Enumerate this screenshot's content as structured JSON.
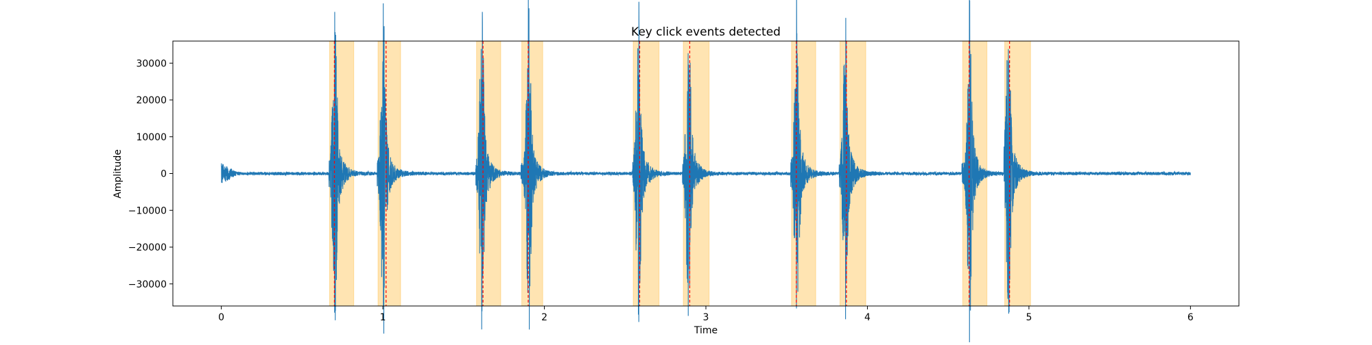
{
  "chart_data": {
    "type": "line",
    "title": "Key click events detected",
    "xlabel": "Time",
    "ylabel": "Amplitude",
    "xlim": [
      -0.3,
      6.3
    ],
    "ylim": [
      -36000,
      36000
    ],
    "x_ticks": [
      0,
      1,
      2,
      3,
      4,
      5,
      6
    ],
    "y_ticks": [
      -30000,
      -20000,
      -10000,
      0,
      10000,
      20000,
      30000
    ],
    "x_tick_labels": [
      "0",
      "1",
      "2",
      "3",
      "4",
      "5",
      "6"
    ],
    "y_tick_labels": [
      "−30000",
      "−20000",
      "−10000",
      "0",
      "10000",
      "20000",
      "30000"
    ],
    "signal_range": [
      0,
      6
    ],
    "grid": false,
    "legend": "none",
    "colors": {
      "signal": "#1f77b4",
      "event_band": "#ffa500",
      "event_band_edge": "#ffa500",
      "event_marker": "#ff0000",
      "axes": "#000000"
    },
    "event_bands": [
      {
        "start": 0.67,
        "end": 0.82
      },
      {
        "start": 0.97,
        "end": 1.11
      },
      {
        "start": 1.58,
        "end": 1.73
      },
      {
        "start": 1.86,
        "end": 1.99
      },
      {
        "start": 2.55,
        "end": 2.71
      },
      {
        "start": 2.86,
        "end": 3.02
      },
      {
        "start": 3.53,
        "end": 3.68
      },
      {
        "start": 3.83,
        "end": 3.99
      },
      {
        "start": 4.59,
        "end": 4.74
      },
      {
        "start": 4.85,
        "end": 5.01
      }
    ],
    "event_markers": [
      0.7,
      1.02,
      1.62,
      1.9,
      2.59,
      2.9,
      3.56,
      3.87,
      4.63,
      4.88
    ],
    "bursts": [
      {
        "onset": 0.665,
        "peak_time": 0.7,
        "peak": 33000
      },
      {
        "onset": 0.965,
        "peak_time": 1.0,
        "peak": 33000
      },
      {
        "onset": 1.575,
        "peak_time": 1.61,
        "peak": 32500
      },
      {
        "onset": 1.855,
        "peak_time": 1.9,
        "peak": 32500
      },
      {
        "onset": 2.545,
        "peak_time": 2.58,
        "peak": 33000
      },
      {
        "onset": 2.855,
        "peak_time": 2.89,
        "peak": 33000
      },
      {
        "onset": 3.525,
        "peak_time": 3.56,
        "peak": 33000
      },
      {
        "onset": 3.825,
        "peak_time": 3.86,
        "peak": 32500
      },
      {
        "onset": 4.585,
        "peak_time": 4.63,
        "peak": 33000
      },
      {
        "onset": 4.845,
        "peak_time": 4.87,
        "peak": 33000
      }
    ],
    "noise_level": 500
  }
}
